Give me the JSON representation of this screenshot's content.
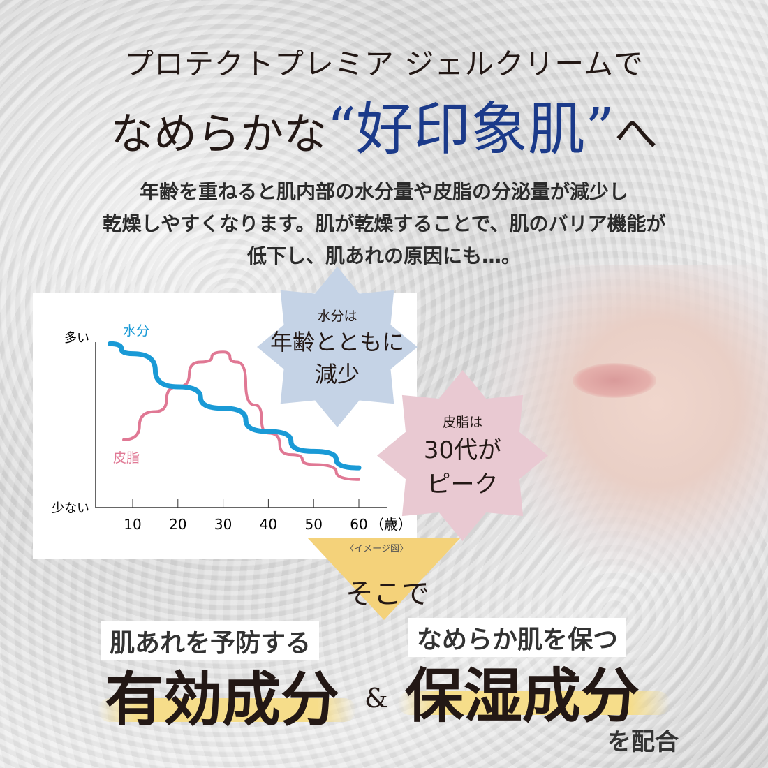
{
  "headline": {
    "line1": "プロテクトプレミア ジェルクリームで",
    "line2_pre": "なめらかな",
    "line2_highlight": "“好印象肌”",
    "line2_post": "へ"
  },
  "description": [
    "年齢を重ねると肌内部の水分量や皮脂の分泌量が減少し",
    "乾燥しやすくなります。肌が乾燥することで、肌のバリア機能が",
    "低下し、肌あれの原因にも…。"
  ],
  "colors": {
    "accent_blue": "#1b3a8a",
    "water_line": "#1a9ad6",
    "sebum_line": "#e07894",
    "star_blue": "#c5d3e6",
    "star_pink": "#e9c9d2",
    "arrow_yellow": "#f4d27a"
  },
  "chart_data": {
    "type": "line",
    "ylabel_top": "多い",
    "ylabel_bottom": "少ない",
    "xunit": "（歳）",
    "xticks": [
      10,
      20,
      30,
      40,
      50,
      60
    ],
    "xlim": [
      0,
      70
    ],
    "ylim": [
      0,
      100
    ],
    "grid": false,
    "note": "〈イメージ図〉",
    "series": [
      {
        "name": "水分",
        "color": "#1a9ad6",
        "x": [
          5,
          10,
          20,
          30,
          40,
          50,
          60
        ],
        "y": [
          99,
          93,
          73,
          60,
          46,
          34,
          24
        ]
      },
      {
        "name": "皮脂",
        "color": "#e07894",
        "x": [
          8,
          15,
          20,
          25,
          30,
          33,
          37,
          40,
          45,
          50,
          60
        ],
        "y": [
          41,
          58,
          73,
          88,
          94,
          88,
          62,
          45,
          32,
          26,
          17
        ]
      }
    ]
  },
  "stars": {
    "water": {
      "small": "水分は",
      "big1": "年齢とともに",
      "big2": "減少"
    },
    "sebum": {
      "small": "皮脂は",
      "big1": "30代が",
      "big2": "ピーク"
    }
  },
  "bottom": {
    "arrow_text": "そこで",
    "label1": "肌あれを予防する",
    "big1": "有効成分",
    "amp": "&",
    "label2": "なめらか肌を保つ",
    "big2": "保湿成分",
    "tail": "を配合"
  }
}
